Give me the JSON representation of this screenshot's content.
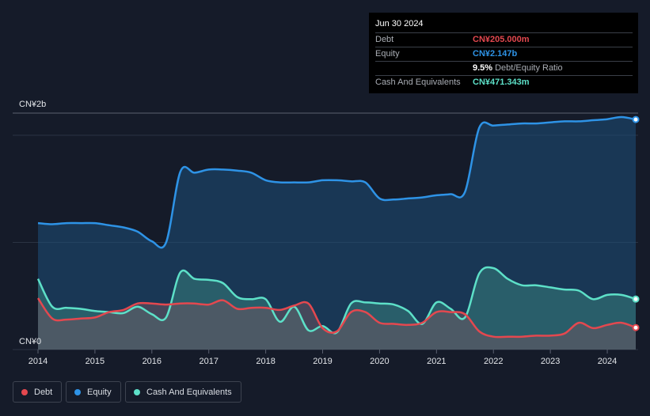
{
  "tooltip": {
    "date": "Jun 30 2024",
    "rows": [
      {
        "label": "Debt",
        "value": "CN¥205.000m",
        "color": "#e4484f"
      },
      {
        "label": "Equity",
        "value": "CN¥2.147b",
        "color": "#2e93e6"
      },
      {
        "label": "",
        "value": "9.5%",
        "suffix": "Debt/Equity Ratio",
        "color": "#ffffff"
      },
      {
        "label": "Cash And Equivalents",
        "value": "CN¥471.343m",
        "color": "#5de0c8"
      }
    ]
  },
  "legend": [
    {
      "label": "Debt",
      "color": "#e4484f"
    },
    {
      "label": "Equity",
      "color": "#2e93e6"
    },
    {
      "label": "Cash And Equivalents",
      "color": "#5de0c8"
    }
  ],
  "chart_data": {
    "type": "area",
    "y_tick_labels": [
      "CN¥2b",
      "CN¥0"
    ],
    "ylim": [
      0,
      2.2
    ],
    "xlim": [
      2014.0,
      2024.5
    ],
    "x_tick_labels": [
      "2014",
      "2015",
      "2016",
      "2017",
      "2018",
      "2019",
      "2020",
      "2021",
      "2022",
      "2023",
      "2024"
    ],
    "x_tick_values": [
      2014,
      2015,
      2016,
      2017,
      2018,
      2019,
      2020,
      2021,
      2022,
      2023,
      2024
    ],
    "unit": "CN¥ billions",
    "series": [
      {
        "name": "Equity",
        "color": "#2e93e6",
        "x": [
          2014.0,
          2014.25,
          2014.5,
          2014.75,
          2015.0,
          2015.25,
          2015.5,
          2015.75,
          2016.0,
          2016.25,
          2016.5,
          2016.75,
          2017.0,
          2017.25,
          2017.5,
          2017.75,
          2018.0,
          2018.25,
          2018.5,
          2018.75,
          2019.0,
          2019.25,
          2019.5,
          2019.75,
          2020.0,
          2020.25,
          2020.5,
          2020.75,
          2021.0,
          2021.25,
          2021.5,
          2021.75,
          2022.0,
          2022.25,
          2022.5,
          2022.75,
          2023.0,
          2023.25,
          2023.5,
          2023.75,
          2024.0,
          2024.25,
          2024.5
        ],
        "values": [
          1.18,
          1.17,
          1.18,
          1.18,
          1.18,
          1.16,
          1.14,
          1.1,
          1.01,
          1.0,
          1.66,
          1.65,
          1.68,
          1.68,
          1.67,
          1.65,
          1.58,
          1.56,
          1.56,
          1.56,
          1.58,
          1.58,
          1.57,
          1.56,
          1.41,
          1.4,
          1.41,
          1.42,
          1.44,
          1.45,
          1.47,
          2.07,
          2.09,
          2.1,
          2.11,
          2.11,
          2.12,
          2.13,
          2.13,
          2.14,
          2.15,
          2.17,
          2.147
        ]
      },
      {
        "name": "Cash And Equivalents",
        "color": "#5de0c8",
        "x": [
          2014.0,
          2014.25,
          2014.5,
          2014.75,
          2015.0,
          2015.25,
          2015.5,
          2015.75,
          2016.0,
          2016.25,
          2016.5,
          2016.75,
          2017.0,
          2017.25,
          2017.5,
          2017.75,
          2018.0,
          2018.25,
          2018.5,
          2018.75,
          2019.0,
          2019.25,
          2019.5,
          2019.75,
          2020.0,
          2020.25,
          2020.5,
          2020.75,
          2021.0,
          2021.25,
          2021.5,
          2021.75,
          2022.0,
          2022.25,
          2022.5,
          2022.75,
          2023.0,
          2023.25,
          2023.5,
          2023.75,
          2024.0,
          2024.25,
          2024.5
        ],
        "values": [
          0.66,
          0.4,
          0.39,
          0.38,
          0.36,
          0.35,
          0.34,
          0.4,
          0.33,
          0.3,
          0.72,
          0.66,
          0.65,
          0.62,
          0.49,
          0.47,
          0.47,
          0.26,
          0.4,
          0.18,
          0.22,
          0.16,
          0.43,
          0.44,
          0.43,
          0.42,
          0.36,
          0.24,
          0.44,
          0.38,
          0.3,
          0.71,
          0.76,
          0.66,
          0.6,
          0.6,
          0.58,
          0.56,
          0.55,
          0.47,
          0.51,
          0.51,
          0.471
        ]
      },
      {
        "name": "Debt",
        "color": "#e4484f",
        "x": [
          2014.0,
          2014.25,
          2014.5,
          2014.75,
          2015.0,
          2015.25,
          2015.5,
          2015.75,
          2016.0,
          2016.25,
          2016.5,
          2016.75,
          2017.0,
          2017.25,
          2017.5,
          2017.75,
          2018.0,
          2018.25,
          2018.5,
          2018.75,
          2019.0,
          2019.25,
          2019.5,
          2019.75,
          2020.0,
          2020.25,
          2020.5,
          2020.75,
          2021.0,
          2021.25,
          2021.5,
          2021.75,
          2022.0,
          2022.25,
          2022.5,
          2022.75,
          2023.0,
          2023.25,
          2023.5,
          2023.75,
          2024.0,
          2024.25,
          2024.5
        ],
        "values": [
          0.48,
          0.29,
          0.28,
          0.29,
          0.3,
          0.35,
          0.37,
          0.43,
          0.43,
          0.42,
          0.43,
          0.43,
          0.42,
          0.46,
          0.38,
          0.39,
          0.39,
          0.37,
          0.41,
          0.43,
          0.2,
          0.17,
          0.35,
          0.35,
          0.25,
          0.24,
          0.23,
          0.25,
          0.35,
          0.35,
          0.33,
          0.17,
          0.12,
          0.12,
          0.12,
          0.13,
          0.13,
          0.15,
          0.25,
          0.2,
          0.23,
          0.25,
          0.205
        ]
      }
    ]
  }
}
